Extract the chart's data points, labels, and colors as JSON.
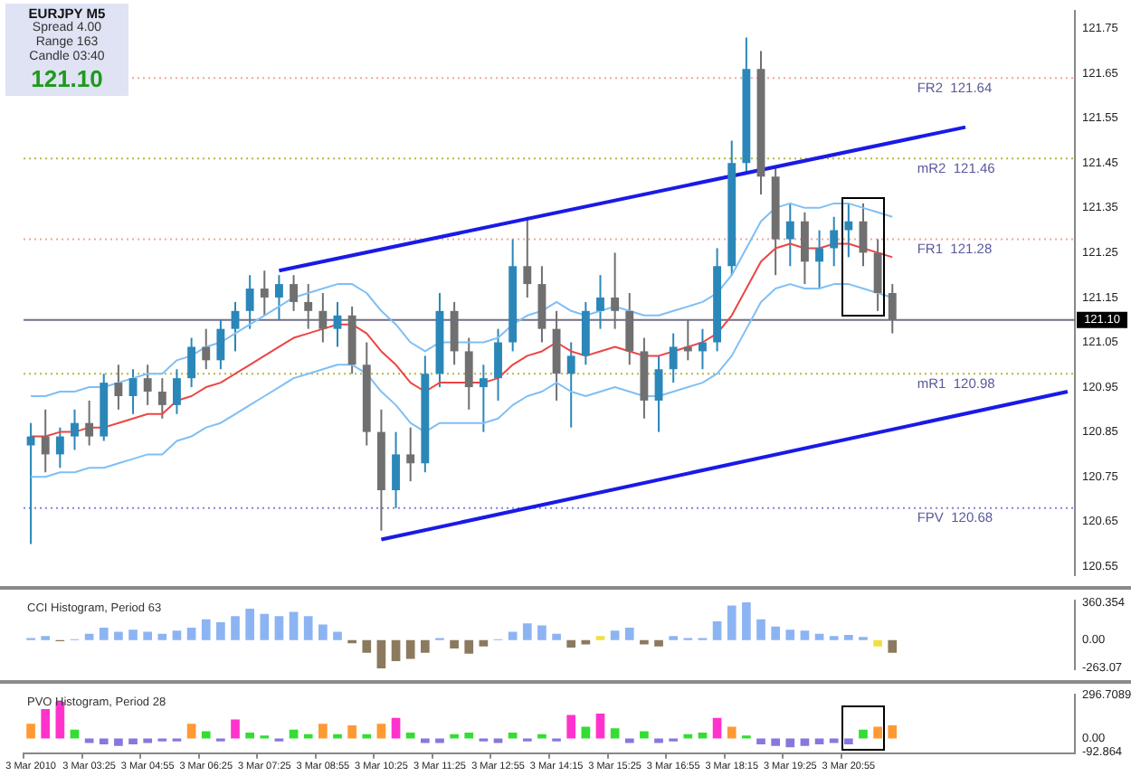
{
  "chart_data": [
    {
      "type": "candlestick",
      "annotations": [
        "EURJPY  M5",
        "Spread  4.00",
        "Range  163",
        "Candle  03:40",
        "121.10"
      ],
      "categories": [
        null,
        null,
        null,
        null,
        null,
        null,
        null,
        null,
        null,
        null,
        null,
        null,
        null,
        null,
        null,
        null,
        null,
        null,
        null,
        null,
        null,
        null,
        null,
        null,
        null,
        null,
        null,
        null,
        null,
        null,
        null,
        null,
        null,
        null,
        null,
        null,
        null,
        null,
        null,
        null,
        null,
        null,
        null,
        null,
        null,
        null,
        null,
        null,
        null,
        null,
        null,
        null,
        null,
        null,
        null,
        null,
        null,
        null,
        null,
        null,
        null,
        null,
        null,
        null,
        null,
        null,
        null,
        null,
        null,
        null,
        null,
        null
      ],
      "ohlc": [
        [
          120.82,
          120.87,
          120.6,
          120.84
        ],
        [
          120.84,
          120.9,
          120.76,
          120.8
        ],
        [
          120.8,
          120.86,
          120.77,
          120.84
        ],
        [
          120.84,
          120.9,
          120.81,
          120.87
        ],
        [
          120.87,
          120.92,
          120.82,
          120.84
        ],
        [
          120.84,
          120.98,
          120.83,
          120.96
        ],
        [
          120.96,
          121.0,
          120.9,
          120.93
        ],
        [
          120.93,
          120.99,
          120.89,
          120.97
        ],
        [
          120.97,
          121.0,
          120.91,
          120.94
        ],
        [
          120.94,
          120.97,
          120.88,
          120.91
        ],
        [
          120.91,
          120.99,
          120.89,
          120.97
        ],
        [
          120.97,
          121.06,
          120.95,
          121.04
        ],
        [
          121.04,
          121.08,
          120.99,
          121.01
        ],
        [
          121.01,
          121.1,
          120.99,
          121.08
        ],
        [
          121.08,
          121.14,
          121.03,
          121.12
        ],
        [
          121.12,
          121.2,
          121.08,
          121.17
        ],
        [
          121.17,
          121.21,
          121.11,
          121.15
        ],
        [
          121.15,
          121.2,
          121.1,
          121.18
        ],
        [
          121.18,
          121.2,
          121.12,
          121.14
        ],
        [
          121.14,
          121.18,
          121.08,
          121.12
        ],
        [
          121.12,
          121.16,
          121.05,
          121.08
        ],
        [
          121.08,
          121.14,
          121.04,
          121.11
        ],
        [
          121.11,
          121.13,
          120.98,
          121.0
        ],
        [
          121.0,
          121.05,
          120.82,
          120.85
        ],
        [
          120.85,
          120.9,
          120.63,
          120.72
        ],
        [
          120.72,
          120.85,
          120.68,
          120.8
        ],
        [
          120.8,
          120.86,
          120.74,
          120.78
        ],
        [
          120.78,
          121.02,
          120.76,
          120.98
        ],
        [
          120.98,
          121.16,
          120.95,
          121.12
        ],
        [
          121.12,
          121.14,
          121.0,
          121.03
        ],
        [
          121.03,
          121.06,
          120.9,
          120.95
        ],
        [
          120.95,
          121.0,
          120.85,
          120.97
        ],
        [
          120.97,
          121.08,
          120.92,
          121.05
        ],
        [
          121.05,
          121.28,
          121.03,
          121.22
        ],
        [
          121.22,
          121.33,
          121.15,
          121.18
        ],
        [
          121.18,
          121.22,
          121.05,
          121.08
        ],
        [
          121.08,
          121.12,
          120.92,
          120.98
        ],
        [
          120.98,
          121.05,
          120.86,
          121.02
        ],
        [
          121.02,
          121.14,
          121.0,
          121.12
        ],
        [
          121.12,
          121.2,
          121.08,
          121.15
        ],
        [
          121.15,
          121.25,
          121.08,
          121.12
        ],
        [
          121.12,
          121.16,
          121.0,
          121.03
        ],
        [
          121.03,
          121.06,
          120.88,
          120.92
        ],
        [
          120.92,
          121.02,
          120.85,
          120.99
        ],
        [
          120.99,
          121.07,
          120.96,
          121.04
        ],
        [
          121.04,
          121.1,
          121.01,
          121.03
        ],
        [
          121.03,
          121.08,
          120.99,
          121.05
        ],
        [
          121.05,
          121.26,
          121.03,
          121.22
        ],
        [
          121.22,
          121.5,
          121.2,
          121.45
        ],
        [
          121.45,
          121.73,
          121.43,
          121.66
        ],
        [
          121.66,
          121.7,
          121.38,
          121.42
        ],
        [
          121.42,
          121.44,
          121.2,
          121.28
        ],
        [
          121.28,
          121.36,
          121.22,
          121.32
        ],
        [
          121.32,
          121.34,
          121.18,
          121.23
        ],
        [
          121.23,
          121.3,
          121.17,
          121.26
        ],
        [
          121.26,
          121.33,
          121.22,
          121.3
        ],
        [
          121.3,
          121.36,
          121.24,
          121.32
        ],
        [
          121.32,
          121.36,
          121.22,
          121.25
        ],
        [
          121.25,
          121.28,
          121.12,
          121.16
        ],
        [
          121.16,
          121.18,
          121.07,
          121.1
        ],
        null,
        null,
        null,
        null,
        null,
        null,
        null,
        null,
        null,
        null,
        null,
        null
      ],
      "colors": [
        "#2b87b8",
        "#707070",
        "#2b87b8",
        "#2b87b8",
        "#707070",
        "#2b87b8",
        "#707070",
        "#2b87b8",
        "#707070",
        "#707070",
        "#2b87b8",
        "#2b87b8",
        "#707070",
        "#2b87b8",
        "#2b87b8",
        "#2b87b8",
        "#707070",
        "#2b87b8",
        "#707070",
        "#707070",
        "#707070",
        "#2b87b8",
        "#707070",
        "#707070",
        "#707070",
        "#2b87b8",
        "#707070",
        "#2b87b8",
        "#2b87b8",
        "#707070",
        "#707070",
        "#2b87b8",
        "#2b87b8",
        "#2b87b8",
        "#707070",
        "#707070",
        "#707070",
        "#2b87b8",
        "#2b87b8",
        "#2b87b8",
        "#707070",
        "#707070",
        "#707070",
        "#2b87b8",
        "#2b87b8",
        "#707070",
        "#2b87b8",
        "#2b87b8",
        "#2b87b8",
        "#2b87b8",
        "#707070",
        "#707070",
        "#2b87b8",
        "#707070",
        "#2b87b8",
        "#2b87b8",
        "#2b87b8",
        "#707070",
        "#707070",
        "#707070",
        null,
        null,
        null,
        null,
        null,
        null,
        null,
        null,
        null,
        null,
        null,
        null
      ],
      "series": [
        {
          "type": "line",
          "color": "#ee4444",
          "values": [
            120.84,
            120.84,
            120.85,
            120.85,
            120.86,
            120.86,
            120.87,
            120.88,
            120.89,
            120.89,
            120.92,
            120.93,
            120.95,
            120.96,
            120.98,
            121.0,
            121.02,
            121.04,
            121.06,
            121.07,
            121.08,
            121.09,
            121.09,
            121.07,
            121.03,
            121.0,
            120.96,
            120.94,
            120.96,
            120.96,
            120.96,
            120.96,
            120.97,
            121.0,
            121.02,
            121.03,
            121.05,
            121.03,
            121.02,
            121.03,
            121.04,
            121.03,
            121.02,
            121.02,
            121.03,
            121.04,
            121.05,
            121.07,
            121.11,
            121.17,
            121.23,
            121.26,
            121.27,
            121.26,
            121.26,
            121.27,
            121.27,
            121.26,
            121.25,
            121.24,
            null,
            null,
            null,
            null,
            null,
            null,
            null,
            null,
            null,
            null,
            null,
            null
          ]
        },
        {
          "type": "line",
          "color": "#7fbff5",
          "values": [
            120.93,
            120.93,
            120.94,
            120.94,
            120.95,
            120.95,
            120.96,
            120.97,
            120.98,
            120.98,
            121.01,
            121.02,
            121.04,
            121.05,
            121.07,
            121.09,
            121.11,
            121.13,
            121.15,
            121.16,
            121.17,
            121.18,
            121.18,
            121.16,
            121.12,
            121.09,
            121.05,
            121.03,
            121.05,
            121.05,
            121.05,
            121.05,
            121.06,
            121.09,
            121.11,
            121.12,
            121.14,
            121.12,
            121.11,
            121.12,
            121.13,
            121.12,
            121.11,
            121.11,
            121.12,
            121.13,
            121.14,
            121.16,
            121.2,
            121.26,
            121.32,
            121.35,
            121.36,
            121.35,
            121.35,
            121.36,
            121.36,
            121.35,
            121.34,
            121.33,
            null,
            null,
            null,
            null,
            null,
            null,
            null,
            null,
            null,
            null,
            null,
            null
          ]
        },
        {
          "type": "line",
          "color": "#7fbff5",
          "values": [
            120.75,
            120.75,
            120.76,
            120.76,
            120.77,
            120.77,
            120.78,
            120.79,
            120.8,
            120.8,
            120.83,
            120.84,
            120.86,
            120.87,
            120.89,
            120.91,
            120.93,
            120.95,
            120.97,
            120.98,
            120.99,
            121.0,
            121.0,
            120.98,
            120.94,
            120.91,
            120.87,
            120.85,
            120.87,
            120.87,
            120.87,
            120.87,
            120.88,
            120.91,
            120.93,
            120.94,
            120.96,
            120.94,
            120.93,
            120.94,
            120.95,
            120.94,
            120.93,
            120.93,
            120.94,
            120.95,
            120.96,
            120.98,
            121.02,
            121.08,
            121.14,
            121.17,
            121.18,
            121.17,
            121.17,
            121.18,
            121.18,
            121.17,
            121.16,
            121.15,
            null,
            null,
            null,
            null,
            null,
            null,
            null,
            null,
            null,
            null,
            null,
            null
          ]
        },
        {
          "type": "line",
          "color": "#1a1ae6",
          "values": [
            null,
            null,
            null,
            null,
            null,
            null,
            null,
            null,
            null,
            null,
            null,
            null,
            null,
            null,
            null,
            null,
            null,
            121.21,
            null,
            null,
            null,
            null,
            null,
            null,
            null,
            null,
            null,
            null,
            null,
            null,
            null,
            null,
            null,
            null,
            null,
            null,
            null,
            null,
            null,
            null,
            null,
            null,
            null,
            null,
            null,
            null,
            null,
            null,
            null,
            null,
            null,
            null,
            null,
            null,
            null,
            null,
            null,
            null,
            null,
            null,
            null,
            null,
            null,
            null,
            121.53,
            null,
            null,
            null,
            null,
            null,
            null,
            null
          ]
        },
        {
          "type": "line",
          "color": "#1a1ae6",
          "values": [
            null,
            null,
            null,
            null,
            null,
            null,
            null,
            null,
            null,
            null,
            null,
            null,
            null,
            null,
            null,
            null,
            null,
            null,
            null,
            null,
            null,
            null,
            null,
            null,
            120.61,
            null,
            null,
            null,
            null,
            null,
            null,
            null,
            null,
            null,
            null,
            null,
            null,
            null,
            null,
            null,
            null,
            null,
            null,
            null,
            null,
            null,
            null,
            null,
            null,
            null,
            null,
            null,
            null,
            null,
            null,
            null,
            null,
            null,
            null,
            null,
            null,
            null,
            null,
            null,
            null,
            null,
            null,
            null,
            null,
            null,
            null,
            120.94
          ]
        }
      ],
      "marker": "none",
      "ref_lines": [
        {
          "axis": "y",
          "value": 121.64,
          "label": "FR2  121.64",
          "color": "#f0a898",
          "line_style": "dotted"
        },
        {
          "axis": "y",
          "value": 121.46,
          "label": "mR2  121.46",
          "color": "#b8b840",
          "line_style": "dotted"
        },
        {
          "axis": "y",
          "value": 121.28,
          "label": "FR1  121.28",
          "color": "#f0a898",
          "line_style": "dotted"
        },
        {
          "axis": "y",
          "value": 120.98,
          "label": "mR1  120.98",
          "color": "#b8b840",
          "line_style": "dotted"
        },
        {
          "axis": "y",
          "value": 120.68,
          "label": "FPV  120.68",
          "color": "#8080f0",
          "line_style": "dotted"
        },
        {
          "axis": "y",
          "value": 121.1,
          "label": "121.10",
          "color": "#707088",
          "line_style": "solid"
        }
      ],
      "tick_labels": "y",
      "ylim": [
        120.53,
        121.79
      ],
      "yticks": [
        121.75,
        121.65,
        121.55,
        121.45,
        121.35,
        121.25,
        121.15,
        121.05,
        120.95,
        120.85,
        120.75,
        120.65,
        120.55
      ]
    },
    {
      "type": "bar",
      "title": "CCI Histogram, Period 63",
      "categories": [
        null,
        null,
        null,
        null,
        null,
        null,
        null,
        null,
        null,
        null,
        null,
        null,
        null,
        null,
        null,
        null,
        null,
        null,
        null,
        null,
        null,
        null,
        null,
        null,
        null,
        null,
        null,
        null,
        null,
        null,
        null,
        null,
        null,
        null,
        null,
        null,
        null,
        null,
        null,
        null,
        null,
        null,
        null,
        null,
        null,
        null,
        null,
        null,
        null,
        null,
        null,
        null,
        null,
        null,
        null,
        null,
        null,
        null,
        null,
        null,
        null,
        null,
        null,
        null,
        null,
        null,
        null,
        null,
        null,
        null,
        null,
        null
      ],
      "values": [
        20,
        40,
        -10,
        10,
        60,
        120,
        80,
        100,
        80,
        60,
        90,
        120,
        200,
        170,
        230,
        300,
        250,
        230,
        270,
        230,
        150,
        80,
        -30,
        -120,
        -270,
        -200,
        -180,
        -120,
        20,
        -80,
        -130,
        -60,
        10,
        80,
        160,
        140,
        60,
        -70,
        -40,
        40,
        90,
        120,
        -40,
        -60,
        40,
        20,
        20,
        180,
        330,
        360,
        200,
        130,
        100,
        90,
        60,
        40,
        50,
        30,
        -60,
        -120,
        null,
        null,
        null,
        null,
        null,
        null,
        null,
        null,
        null,
        null,
        null,
        null
      ],
      "colors": [
        "#8db4f2",
        "#8db4f2",
        "#8b7a5e",
        "#8db4f2",
        "#8db4f2",
        "#8db4f2",
        "#8db4f2",
        "#8db4f2",
        "#8db4f2",
        "#8db4f2",
        "#8db4f2",
        "#8db4f2",
        "#8db4f2",
        "#8db4f2",
        "#8db4f2",
        "#8db4f2",
        "#8db4f2",
        "#8db4f2",
        "#8db4f2",
        "#8db4f2",
        "#8db4f2",
        "#8db4f2",
        "#8b7a5e",
        "#8b7a5e",
        "#8b7a5e",
        "#8b7a5e",
        "#8b7a5e",
        "#8b7a5e",
        "#8db4f2",
        "#8b7a5e",
        "#8b7a5e",
        "#8b7a5e",
        "#8db4f2",
        "#8db4f2",
        "#8db4f2",
        "#8db4f2",
        "#8db4f2",
        "#8b7a5e",
        "#8b7a5e",
        "#f0e040",
        "#8db4f2",
        "#8db4f2",
        "#8b7a5e",
        "#8b7a5e",
        "#8db4f2",
        "#8db4f2",
        "#8db4f2",
        "#8db4f2",
        "#8db4f2",
        "#8db4f2",
        "#8db4f2",
        "#8db4f2",
        "#8db4f2",
        "#8db4f2",
        "#8db4f2",
        "#8db4f2",
        "#8db4f2",
        "#8db4f2",
        "#f0e040",
        "#8b7a5e",
        null,
        null,
        null,
        null,
        null,
        null,
        null,
        null,
        null,
        null,
        null,
        null
      ],
      "tick_labels": "y",
      "ylim": [
        -280,
        380
      ],
      "yticks": [
        360.354,
        {
          "value": 0,
          "label": "0.00"
        },
        -263.07
      ]
    },
    {
      "type": "bar",
      "title": "PVO Histogram, Period 28",
      "categories": [
        "3 Mar 2010",
        null,
        null,
        null,
        "3 Mar 03:25",
        null,
        null,
        null,
        "3 Mar 04:55",
        null,
        null,
        null,
        "3 Mar 06:25",
        null,
        null,
        null,
        "3 Mar 07:25",
        null,
        null,
        null,
        "3 Mar 08:55",
        null,
        null,
        null,
        "3 Mar 10:25",
        null,
        null,
        null,
        "3 Mar 11:25",
        null,
        null,
        null,
        "3 Mar 12:55",
        null,
        null,
        null,
        "3 Mar 14:15",
        null,
        null,
        null,
        "3 Mar 15:25",
        null,
        null,
        null,
        "3 Mar 16:55",
        null,
        null,
        null,
        "3 Mar 18:15",
        null,
        null,
        null,
        "3 Mar 19:25",
        null,
        null,
        null,
        "3 Mar 20:55",
        null,
        null,
        null,
        null,
        null,
        null,
        null,
        null,
        null,
        null,
        null,
        null,
        null,
        null,
        null
      ],
      "values": [
        100,
        200,
        250,
        60,
        -30,
        -40,
        -50,
        -40,
        -30,
        -20,
        -20,
        100,
        50,
        -20,
        130,
        40,
        20,
        -20,
        60,
        30,
        100,
        30,
        90,
        30,
        100,
        140,
        40,
        -30,
        -30,
        30,
        40,
        -20,
        -30,
        40,
        -20,
        30,
        -20,
        160,
        80,
        170,
        70,
        -30,
        50,
        -30,
        -20,
        30,
        40,
        140,
        80,
        20,
        -40,
        -50,
        -60,
        -50,
        -40,
        -30,
        -40,
        60,
        80,
        90,
        null,
        null,
        null,
        null,
        null,
        null,
        null,
        null,
        null,
        null,
        null,
        null
      ],
      "colors": [
        "#ff9933",
        "#ff33cc",
        "#ff33cc",
        "#33dd33",
        "#8877dd",
        "#8877dd",
        "#8877dd",
        "#8877dd",
        "#8877dd",
        "#8877dd",
        "#8877dd",
        "#ff9933",
        "#33dd33",
        "#8877dd",
        "#ff33cc",
        "#33dd33",
        "#33dd33",
        "#8877dd",
        "#33dd33",
        "#33dd33",
        "#ff9933",
        "#33dd33",
        "#ff9933",
        "#33dd33",
        "#ff9933",
        "#ff33cc",
        "#33dd33",
        "#8877dd",
        "#8877dd",
        "#33dd33",
        "#33dd33",
        "#8877dd",
        "#8877dd",
        "#33dd33",
        "#8877dd",
        "#33dd33",
        "#8877dd",
        "#ff33cc",
        "#33dd33",
        "#ff33cc",
        "#33dd33",
        "#8877dd",
        "#33dd33",
        "#8877dd",
        "#8877dd",
        "#33dd33",
        "#33dd33",
        "#ff33cc",
        "#ff9933",
        "#33dd33",
        "#8877dd",
        "#8877dd",
        "#8877dd",
        "#8877dd",
        "#8877dd",
        "#8877dd",
        "#8877dd",
        "#33dd33",
        "#ff9933",
        "#ff9933",
        null,
        null,
        null,
        null,
        null,
        null,
        null,
        null,
        null,
        null,
        null,
        null
      ],
      "ylim": [
        -100,
        300
      ],
      "yticks": [
        296.7089,
        {
          "value": 0,
          "label": "0.00"
        },
        -92.864
      ]
    }
  ]
}
